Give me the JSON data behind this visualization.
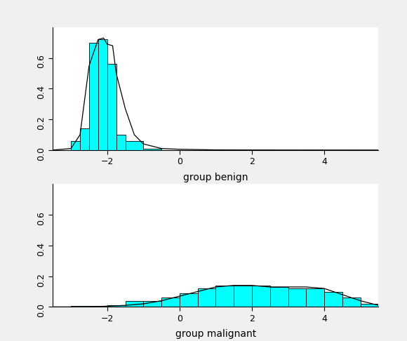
{
  "title_benign": "group benign",
  "title_malignant": "group malignant",
  "bar_color": "#00FFFF",
  "bar_edgecolor": "#000000",
  "line_color": "#000000",
  "bg_color": "#FFFFFF",
  "outer_bg": "#F0F0F0",
  "xlim": [
    -3.5,
    5.5
  ],
  "ylim": [
    0,
    0.8
  ],
  "yticks": [
    0.0,
    0.2,
    0.4,
    0.6
  ],
  "xticks": [
    -2,
    0,
    2,
    4
  ],
  "benign_bar_lefts": [
    -3.0,
    -2.75,
    -2.5,
    -2.25,
    -2.0,
    -1.75,
    -1.5,
    -1.0
  ],
  "benign_bar_widths": [
    0.25,
    0.25,
    0.25,
    0.25,
    0.25,
    0.25,
    0.5,
    0.5
  ],
  "benign_bar_heights": [
    0.06,
    0.14,
    0.7,
    0.72,
    0.56,
    0.1,
    0.06,
    0.01
  ],
  "malignant_bar_lefts": [
    -3.0,
    -2.0,
    -1.5,
    -1.0,
    -0.5,
    0.0,
    0.5,
    1.0,
    1.5,
    2.0,
    2.5,
    3.0,
    3.5,
    4.0,
    4.5,
    5.0
  ],
  "malignant_bar_widths": [
    1.0,
    0.5,
    0.5,
    0.5,
    0.5,
    0.5,
    0.5,
    0.5,
    0.5,
    0.5,
    0.5,
    0.5,
    0.5,
    0.5,
    0.5,
    0.5
  ],
  "malignant_bar_heights": [
    0.005,
    0.01,
    0.04,
    0.04,
    0.06,
    0.09,
    0.12,
    0.14,
    0.14,
    0.14,
    0.13,
    0.12,
    0.12,
    0.1,
    0.06,
    0.02
  ],
  "benign_kde_x": [
    -3.5,
    -3.0,
    -2.75,
    -2.5,
    -2.25,
    -2.1,
    -2.0,
    -1.85,
    -1.75,
    -1.5,
    -1.25,
    -1.0,
    -0.5,
    0.0,
    1.0,
    2.0,
    3.0,
    4.0,
    5.0,
    5.5
  ],
  "benign_kde_y": [
    0.0,
    0.01,
    0.1,
    0.55,
    0.72,
    0.73,
    0.69,
    0.68,
    0.5,
    0.27,
    0.1,
    0.04,
    0.01,
    0.005,
    0.001,
    0.0005,
    0.0002,
    0.0001,
    5e-05,
    3e-05
  ],
  "malignant_kde_x": [
    -3.5,
    -3.0,
    -2.5,
    -2.0,
    -1.5,
    -1.0,
    -0.5,
    0.0,
    0.5,
    1.0,
    1.5,
    2.0,
    2.5,
    3.0,
    3.5,
    4.0,
    4.5,
    5.0,
    5.5
  ],
  "malignant_kde_y": [
    0.0,
    0.0,
    0.0,
    0.005,
    0.01,
    0.02,
    0.04,
    0.07,
    0.1,
    0.13,
    0.14,
    0.14,
    0.13,
    0.13,
    0.13,
    0.12,
    0.08,
    0.04,
    0.01
  ]
}
